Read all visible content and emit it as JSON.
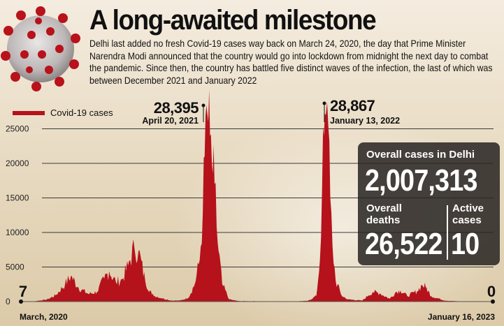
{
  "title": "A long-awaited milestone",
  "subtitle": "Delhi last added no fresh Covid-19 cases way back on March 24, 2020, the day that Prime Minister Narendra Modi announced that the country would go into lockdown from midnight the next day to combat the pandemic. Since then, the country has battled five distinct waves of the infection, the last of which was between December 2021 and January 2022",
  "colors": {
    "series": "#b5121b",
    "accent": "#b5121b"
  },
  "stats": {
    "overall_label": "Overall cases in Delhi",
    "overall_value": "2,007,313",
    "deaths_label": "Overall deaths",
    "deaths_value": "26,522",
    "active_label": "Active cases",
    "active_value": "10"
  },
  "chart_data": {
    "type": "area",
    "series": [
      {
        "name": "Covid-19 cases",
        "color": "#b5121b"
      }
    ],
    "x_range": [
      "2020-03-01",
      "2023-01-16"
    ],
    "ylim": [
      0,
      30000
    ],
    "yticks": [
      "0",
      "5000",
      "10000",
      "15000",
      "20000",
      "25000"
    ],
    "ytick_values": [
      0,
      5000,
      10000,
      15000,
      20000,
      25000
    ],
    "grid": true,
    "legend": "top-left",
    "x": [
      "2020-03-01",
      "2020-04-01",
      "2020-05-01",
      "2020-05-20",
      "2020-06-10",
      "2020-06-23",
      "2020-07-10",
      "2020-08-01",
      "2020-08-20",
      "2020-09-05",
      "2020-09-16",
      "2020-10-01",
      "2020-10-15",
      "2020-10-28",
      "2020-11-11",
      "2020-11-20",
      "2020-12-05",
      "2020-12-20",
      "2021-01-10",
      "2021-02-01",
      "2021-02-20",
      "2021-03-10",
      "2021-03-25",
      "2021-04-05",
      "2021-04-12",
      "2021-04-16",
      "2021-04-20",
      "2021-04-24",
      "2021-04-28",
      "2021-05-02",
      "2021-05-08",
      "2021-05-15",
      "2021-05-25",
      "2021-06-10",
      "2021-07-01",
      "2021-08-01",
      "2021-09-01",
      "2021-10-01",
      "2021-11-01",
      "2021-12-01",
      "2021-12-20",
      "2021-12-28",
      "2022-01-02",
      "2022-01-06",
      "2022-01-10",
      "2022-01-13",
      "2022-01-16",
      "2022-01-20",
      "2022-01-25",
      "2022-02-01",
      "2022-02-15",
      "2022-03-01",
      "2022-04-01",
      "2022-04-15",
      "2022-04-25",
      "2022-05-10",
      "2022-06-01",
      "2022-06-15",
      "2022-06-25",
      "2022-07-10",
      "2022-08-01",
      "2022-08-12",
      "2022-08-20",
      "2022-09-01",
      "2022-10-01",
      "2022-11-01",
      "2022-12-01",
      "2023-01-16"
    ],
    "values": [
      7,
      30,
      300,
      900,
      2500,
      3700,
      2000,
      1100,
      1400,
      3300,
      4400,
      2800,
      3200,
      5200,
      7800,
      7300,
      3000,
      1000,
      500,
      150,
      150,
      500,
      2500,
      6000,
      13000,
      21000,
      28395,
      26000,
      24000,
      20000,
      17000,
      8500,
      2500,
      300,
      70,
      60,
      40,
      30,
      45,
      100,
      800,
      6000,
      17000,
      24000,
      27000,
      28867,
      25000,
      15000,
      8000,
      3000,
      800,
      300,
      150,
      900,
      1400,
      1200,
      400,
      1400,
      1600,
      800,
      1500,
      2400,
      2100,
      800,
      150,
      40,
      15,
      0
    ],
    "peaks": [
      {
        "value": "28,395",
        "date": "April 20, 2021"
      },
      {
        "value": "28,867",
        "date": "January 13, 2022"
      }
    ],
    "start": {
      "value": "7",
      "date": "March, 2020"
    },
    "end": {
      "value": "0",
      "date": "January 16, 2023"
    }
  }
}
